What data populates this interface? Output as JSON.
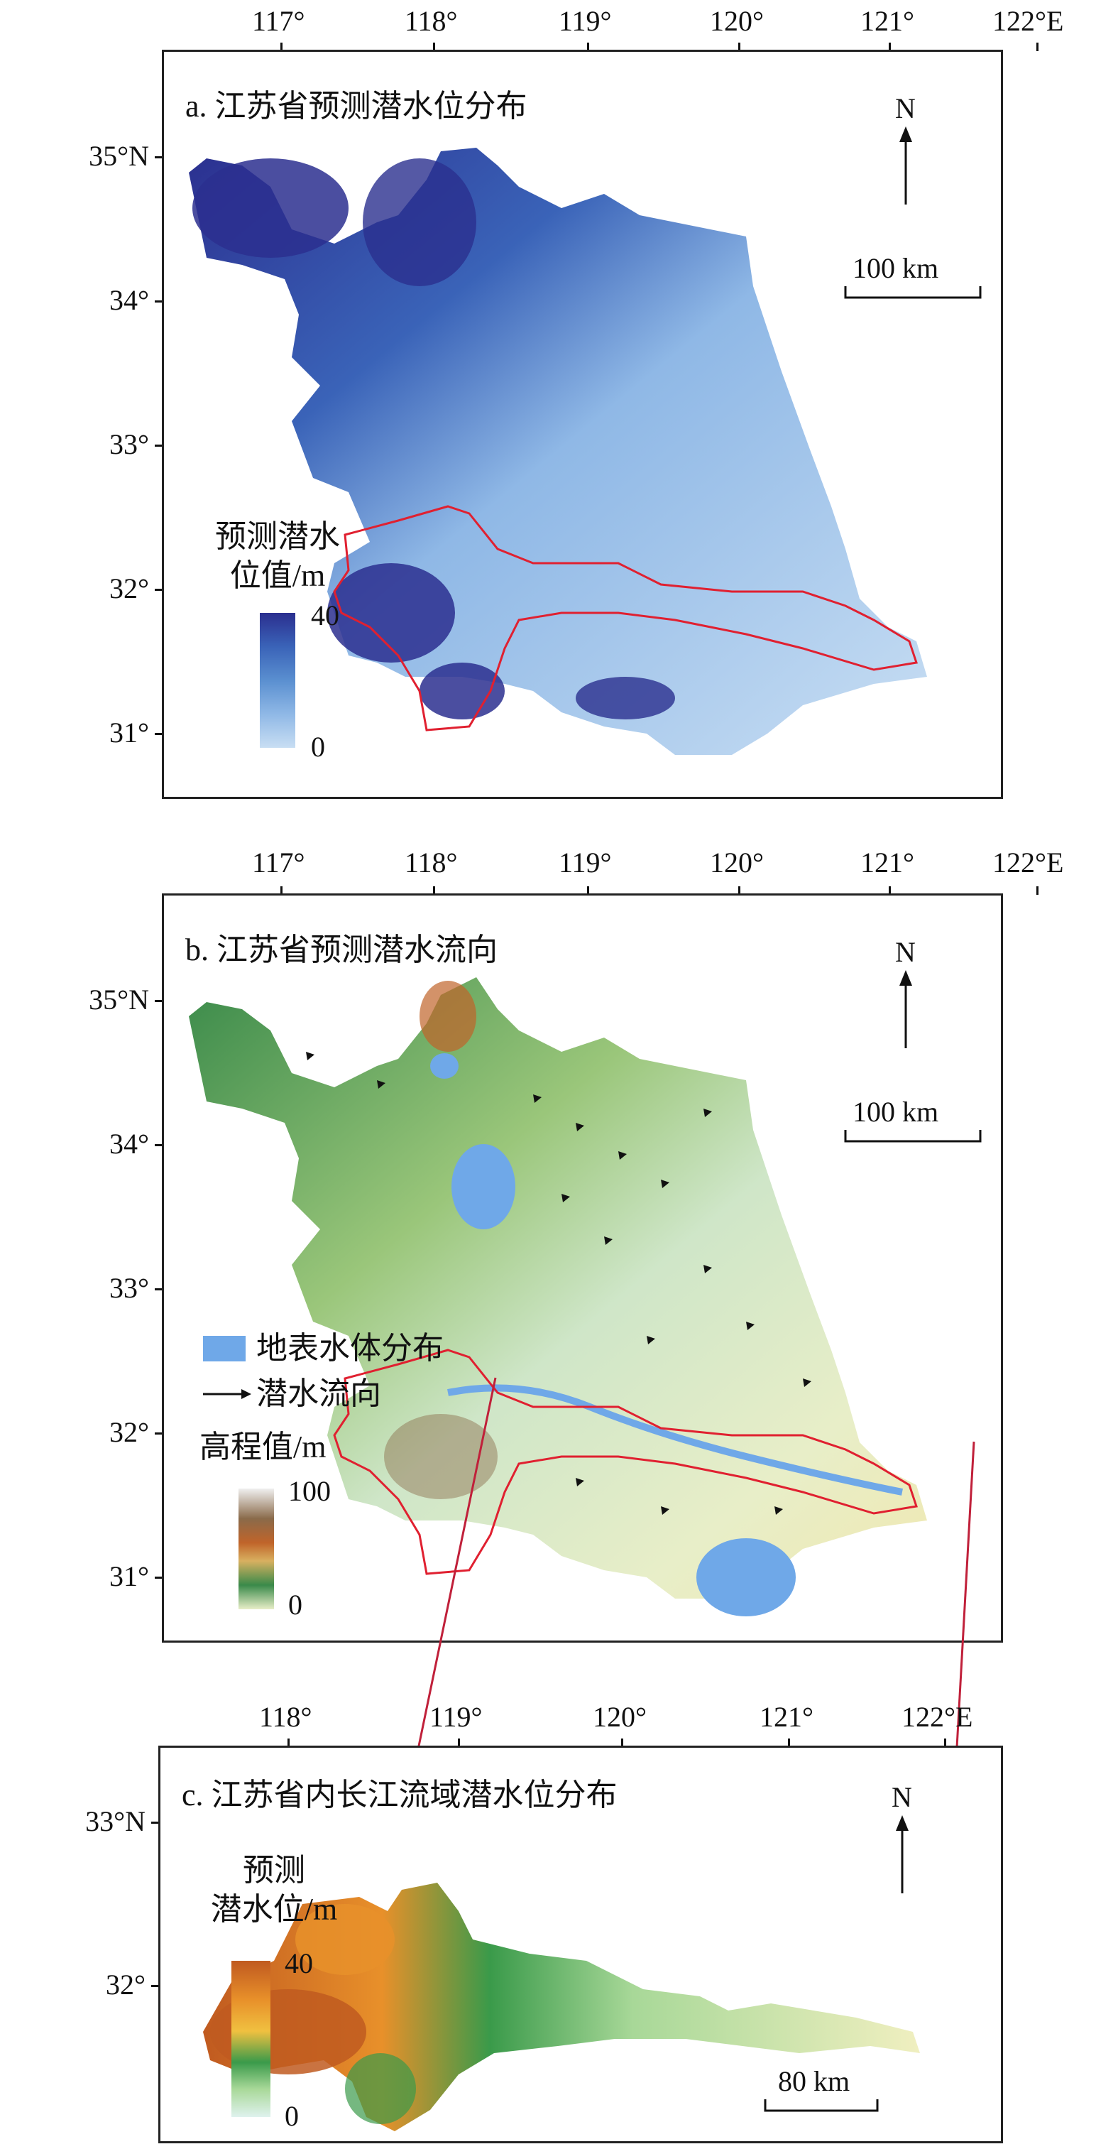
{
  "panel_a": {
    "title": "a. 江苏省预测潜水位分布",
    "x_ticks": [
      "117°",
      "118°",
      "119°",
      "120°",
      "121°",
      "122°E"
    ],
    "y_ticks": [
      "35°N",
      "34°",
      "33°",
      "32°",
      "31°"
    ],
    "north": "N",
    "scale": "100 km",
    "legend": {
      "title_line1": "预测潜水",
      "title_line2": "位值/m",
      "max": "40",
      "min": "0",
      "colors": [
        "#2b2f8f",
        "#3a63b8",
        "#5a8fd0",
        "#8fb8e6",
        "#c8def3"
      ]
    }
  },
  "panel_b": {
    "title": "b. 江苏省预测潜水流向",
    "x_ticks": [
      "117°",
      "118°",
      "119°",
      "120°",
      "121°",
      "122°E"
    ],
    "y_ticks": [
      "35°N",
      "34°",
      "33°",
      "32°",
      "31°"
    ],
    "north": "N",
    "scale": "100 km",
    "legend": {
      "water": "地表水体分布",
      "flow": "潜水流向",
      "elev_title": "高程值/m",
      "max": "100",
      "min": "0",
      "colors": [
        "#f0f0f0",
        "#8a6a4a",
        "#c0642a",
        "#d8b060",
        "#3a8a4a",
        "#e8eec8"
      ],
      "water_color": "#6fa8e8"
    }
  },
  "panel_c": {
    "title": "c. 江苏省内长江流域潜水位分布",
    "x_ticks": [
      "118°",
      "119°",
      "120°",
      "121°",
      "122°E"
    ],
    "y_ticks": [
      "33°N",
      "32°"
    ],
    "north": "N",
    "scale": "80 km",
    "legend": {
      "title_line1": "预测",
      "title_line2": "潜水位/m",
      "max": "40",
      "min": "0",
      "colors": [
        "#c05a20",
        "#e8902a",
        "#f0c040",
        "#3a9a4a",
        "#a8d898",
        "#dff2ee"
      ]
    }
  },
  "boundary_color": "#e02030",
  "connector_color": "#c0203a"
}
